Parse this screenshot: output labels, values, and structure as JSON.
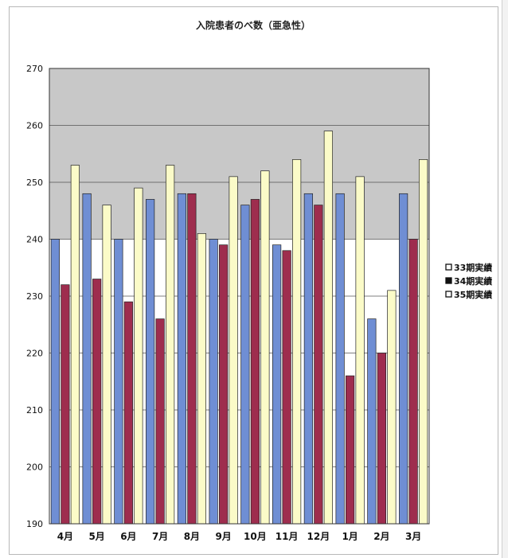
{
  "chart_data": {
    "type": "bar",
    "title": "入院患者のべ数（亜急性）",
    "categories": [
      "4月",
      "5月",
      "6月",
      "7月",
      "8月",
      "9月",
      "10月",
      "11月",
      "12月",
      "1月",
      "2月",
      "3月"
    ],
    "ylim": [
      190,
      270
    ],
    "yticks": [
      190,
      200,
      210,
      220,
      230,
      240,
      250,
      260,
      270
    ],
    "grid": true,
    "legend_position": "right",
    "series": [
      {
        "name": "33期実績",
        "color": "#6f8ed4",
        "values": [
          240,
          248,
          240,
          247,
          248,
          240,
          246,
          239,
          248,
          248,
          226,
          248
        ]
      },
      {
        "name": "34期実績",
        "color": "#9e2d4e",
        "values": [
          232,
          233,
          229,
          226,
          248,
          239,
          247,
          238,
          246,
          216,
          220,
          240
        ]
      },
      {
        "name": "35期実績",
        "color": "#fbfbc8",
        "values": [
          253,
          246,
          249,
          253,
          241,
          251,
          252,
          254,
          259,
          251,
          231,
          254
        ]
      }
    ]
  }
}
